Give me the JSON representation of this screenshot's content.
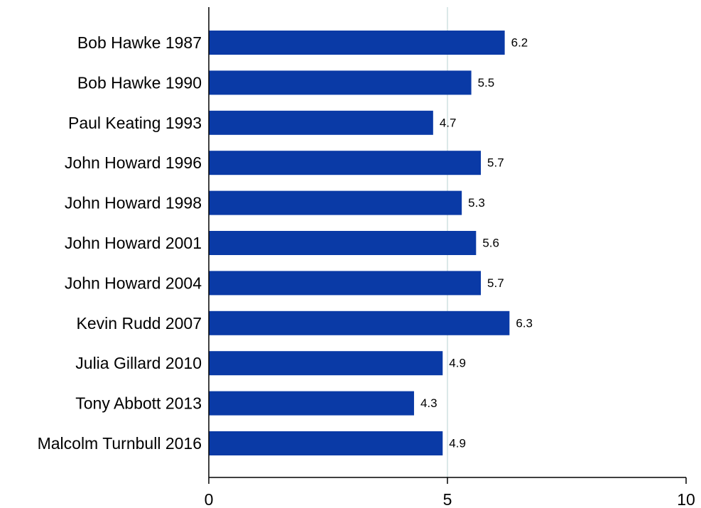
{
  "chart_data": {
    "type": "bar",
    "orientation": "horizontal",
    "categories": [
      "Bob Hawke 1987",
      "Bob Hawke 1990",
      "Paul Keating 1993",
      "John Howard 1996",
      "John Howard 1998",
      "John Howard 2001",
      "John Howard 2004",
      "Kevin Rudd 2007",
      "Julia Gillard 2010",
      "Tony Abbott 2013",
      "Malcolm Turnbull 2016"
    ],
    "values": [
      6.2,
      5.5,
      4.7,
      5.7,
      5.3,
      5.6,
      5.7,
      6.3,
      4.9,
      4.3,
      4.9
    ],
    "value_labels": [
      "6.2",
      "5.5",
      "4.7",
      "5.7",
      "5.3",
      "5.6",
      "5.7",
      "6.3",
      "4.9",
      "4.3",
      "4.9"
    ],
    "xlim": [
      0,
      10
    ],
    "xticks": [
      0,
      5,
      10
    ],
    "xtick_labels": [
      "0",
      "5",
      "10"
    ],
    "title": "",
    "xlabel": "",
    "ylabel": "",
    "grid": "vertical line at 5",
    "bar_color": "#0a3aa6",
    "grid_color": "#dbe8e8",
    "axis_color": "#000000"
  }
}
